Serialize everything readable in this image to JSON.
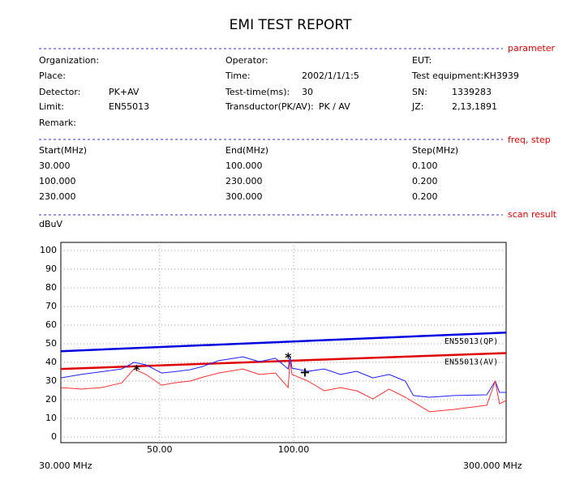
{
  "header": {
    "title": "EMI TEST REPORT"
  },
  "sections": {
    "parameter": "parameter",
    "freq_step": "freq, step",
    "scan_result": "scan result"
  },
  "parameters": [
    [
      {
        "label": "Organization:"
      },
      {
        "label": "Operator:"
      },
      {
        "label": "EUT:"
      }
    ],
    [
      {
        "label": "Place:"
      },
      {
        "label": "Time:",
        "value": "2002/1/1/1:5"
      },
      {
        "label": "Test equipment:KH3939"
      }
    ],
    [
      {
        "label": "Detector:",
        "value": "PK+AV"
      },
      {
        "label": "Test-time(ms):",
        "value": "30"
      },
      {
        "label": "SN:",
        "value": "1339283"
      }
    ],
    [
      {
        "label": "Limit:",
        "value": "EN55013"
      },
      {
        "label": "Transductor(PK/AV):",
        "value": "PK  /  AV"
      },
      {
        "label": "JZ:",
        "value": "2,13,1891"
      }
    ],
    [
      {
        "label": "Remark:"
      }
    ]
  ],
  "freq_table": {
    "headers": [
      "Start(MHz)",
      "End(MHz)",
      "Step(MHz)"
    ],
    "rows": [
      [
        "30.000",
        "100.000",
        "0.100"
      ],
      [
        "100.000",
        "230.000",
        "0.200"
      ],
      [
        "230.000",
        "300.000",
        "0.200"
      ]
    ]
  },
  "chart_data": {
    "type": "line",
    "ylabel": "dBuV",
    "xscale": "log",
    "grid": true,
    "xlim": [
      30,
      300
    ],
    "xlim_labels": [
      "30.000 MHz",
      "300.000 MHz"
    ],
    "ylim": [
      0,
      100
    ],
    "yticks": [
      0,
      10,
      20,
      30,
      40,
      50,
      60,
      70,
      80,
      90,
      100
    ],
    "xticks": [
      {
        "value": 50,
        "label": "50.00"
      },
      {
        "value": 100,
        "label": "100.00"
      }
    ],
    "series": [
      {
        "name": "EN55013(QP)",
        "color": "#0000e0",
        "width": 2.5,
        "x": [
          30,
          300
        ],
        "values": [
          46,
          56
        ]
      },
      {
        "name": "EN55013(AV)",
        "color": "#e00000",
        "width": 2.5,
        "x": [
          30,
          300
        ],
        "values": [
          36.5,
          45
        ]
      },
      {
        "color": "#2020ff",
        "width": 1,
        "x": [
          30,
          33.3,
          37,
          41.1,
          43.8,
          46.6,
          50.5,
          53.9,
          58.6,
          62.4,
          67.8,
          77,
          83.7,
          91,
          97.2,
          98.1,
          99.2,
          107.7,
          117.1,
          127.4,
          138.5,
          150.6,
          163.8,
          178.1,
          185.7,
          202,
          229,
          271.4,
          283.6,
          289.9,
          300
        ],
        "values": [
          31.7,
          33.5,
          35,
          36.5,
          40,
          38.7,
          34.3,
          35,
          36.1,
          37.8,
          40.9,
          43,
          40.4,
          42.2,
          36.5,
          43,
          36.9,
          35.2,
          36.5,
          33.5,
          35.2,
          31.7,
          33.5,
          30,
          22.2,
          21.3,
          22.2,
          22.6,
          30,
          23.9,
          23.9
        ]
      },
      {
        "color": "#ff3030",
        "width": 1,
        "x": [
          30,
          33.3,
          37,
          41.1,
          43.8,
          46.6,
          50.5,
          53.9,
          58.6,
          62.4,
          67.8,
          77,
          83.7,
          91,
          97.2,
          98.1,
          99.2,
          107.7,
          117.1,
          127.4,
          138.5,
          150.6,
          163.8,
          178.1,
          202,
          229,
          271.4,
          283.6,
          289.9,
          300
        ],
        "values": [
          26.5,
          25.7,
          26.5,
          29,
          36.5,
          33.5,
          27.8,
          29,
          30,
          32,
          34.3,
          36.5,
          33.5,
          34.3,
          26.5,
          40.9,
          33.5,
          30,
          24.8,
          26.5,
          24.8,
          20.4,
          25.7,
          21.3,
          13.5,
          14.8,
          17,
          30,
          17.8,
          19.6
        ]
      }
    ],
    "markers": [
      {
        "symbol": "*",
        "x": 44.4,
        "value": 36.5
      },
      {
        "symbol": "*",
        "x": 97.2,
        "value": 43
      },
      {
        "symbol": "+",
        "x": 106,
        "value": 35.2
      }
    ]
  }
}
